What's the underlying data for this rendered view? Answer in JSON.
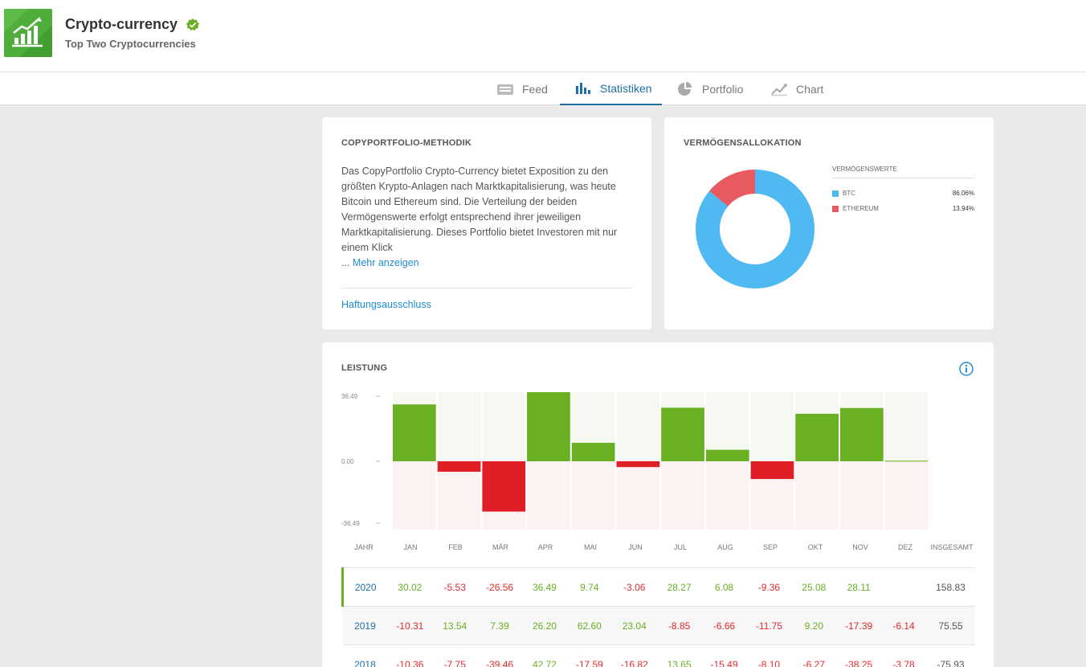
{
  "header": {
    "title": "Crypto-currency",
    "subtitle": "Top Two Cryptocurrencies"
  },
  "tabs": [
    {
      "label": "Feed",
      "icon": "feed-icon"
    },
    {
      "label": "Statistiken",
      "icon": "bar-chart-icon",
      "active": true
    },
    {
      "label": "Portfolio",
      "icon": "pie-chart-icon"
    },
    {
      "label": "Chart",
      "icon": "line-chart-icon"
    }
  ],
  "methodik": {
    "title": "COPYPORTFOLIO-METHODIK",
    "text": "Das CopyPortfolio Crypto-Currency bietet Exposition zu den größten Krypto-Anlagen nach Marktkapitalisierung, was heute Bitcoin und Ethereum sind. Die Verteilung der beiden Vermögenswerte erfolgt entsprechend ihrer jeweiligen Marktkapitalisierung. Dieses Portfolio bietet Investoren mit nur einem Klick",
    "more_prefix": "... ",
    "more_label": "Mehr anzeigen",
    "disclaimer": "Haftungsausschluss"
  },
  "allocation": {
    "title": "VERMÖGENSALLOKATION",
    "legend_title": "VERMÖGENSWERTE",
    "items": [
      {
        "name": "BTC",
        "pct": "86.06%",
        "value": 86.06,
        "color": "#4fb9f2"
      },
      {
        "name": "ETHEREUM",
        "pct": "13.94%",
        "value": 13.94,
        "color": "#e85a5f"
      }
    ]
  },
  "leistung": {
    "title": "LEISTUNG",
    "y_ticks": [
      "36.49",
      "0.00",
      "-36.49"
    ],
    "columns": [
      "JAHR",
      "JAN",
      "FEB",
      "MÄR",
      "APR",
      "MAI",
      "JUN",
      "JUL",
      "AUG",
      "SEP",
      "OKT",
      "NOV",
      "DEZ",
      "INSGESAMT"
    ],
    "rows": [
      {
        "year": "2020",
        "values": [
          "30.02",
          "-5.53",
          "-26.56",
          "36.49",
          "9.74",
          "-3.06",
          "28.27",
          "6.08",
          "-9.36",
          "25.08",
          "28.11",
          ""
        ],
        "total": "158.83"
      },
      {
        "year": "2019",
        "values": [
          "-10.31",
          "13.54",
          "7.39",
          "26.20",
          "62.60",
          "23.04",
          "-8.85",
          "-6.66",
          "-11.75",
          "9.20",
          "-17.39",
          "-6.14"
        ],
        "total": "75.55"
      },
      {
        "year": "2018",
        "values": [
          "-10.36",
          "-7.75",
          "-39.46",
          "42.72",
          "-17.59",
          "-16.82",
          "13.65",
          "-15.49",
          "-8.10",
          "-6.27",
          "-38.25",
          "-3.78"
        ],
        "total": "-75.93"
      }
    ]
  },
  "chart_data": {
    "type": "bar",
    "categories": [
      "JAN",
      "FEB",
      "MÄR",
      "APR",
      "MAI",
      "JUN",
      "JUL",
      "AUG",
      "SEP",
      "OKT",
      "NOV",
      "DEZ"
    ],
    "values": [
      30.02,
      -5.53,
      -26.56,
      36.49,
      9.74,
      -3.06,
      28.27,
      6.08,
      -9.36,
      25.08,
      28.11,
      0.3
    ],
    "ylim": [
      -36.49,
      36.49
    ],
    "colors": {
      "positive": "#6ab023",
      "negative": "#e01e26",
      "pos_bg": "#f6f9f1",
      "neg_bg": "#fcf2f1"
    }
  }
}
